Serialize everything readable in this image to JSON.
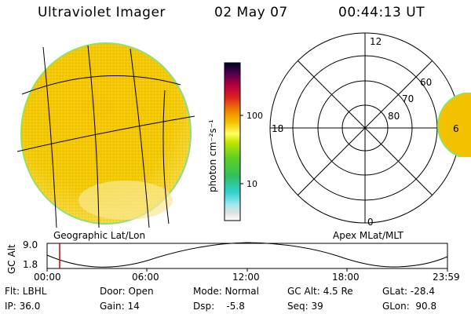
{
  "header": {
    "instrument": "Ultraviolet Imager",
    "date": "02 May 07",
    "time": "00:44:13 UT"
  },
  "colorbar": {
    "label": "photon cm⁻²s⁻¹",
    "ticks": [
      "100",
      "10"
    ],
    "scale": "log"
  },
  "left_image": {
    "caption": "Geographic Lat/Lon"
  },
  "polar_plot": {
    "caption": "Apex MLat/MLT",
    "lat_labels": [
      "80",
      "70",
      "60"
    ],
    "mlt_labels": [
      "12",
      "18",
      "6",
      "0"
    ]
  },
  "altitude_plot": {
    "ylabel": "GC Alt",
    "yticks": [
      "9.0",
      "1.8"
    ],
    "xticks": [
      "00:00",
      "06:00",
      "12:00",
      "18:00",
      "23:59"
    ],
    "current_time_fraction": 0.031
  },
  "info": {
    "flt": "Flt: LBHL",
    "ip": "IP: 36.0",
    "door": "Door: Open",
    "gain": "Gain: 14",
    "mode": "Mode: Normal",
    "dsp": "Dsp:    -5.8",
    "gcalt": "GC Alt: 4.5 Re",
    "seq": "Seq: 39",
    "glat": "GLat: -28.4",
    "glon": "GLon:  90.8"
  },
  "colors": {
    "image_fill": "#f2c200",
    "image_edge": "#8fe070",
    "red_marker": "#d00000"
  }
}
